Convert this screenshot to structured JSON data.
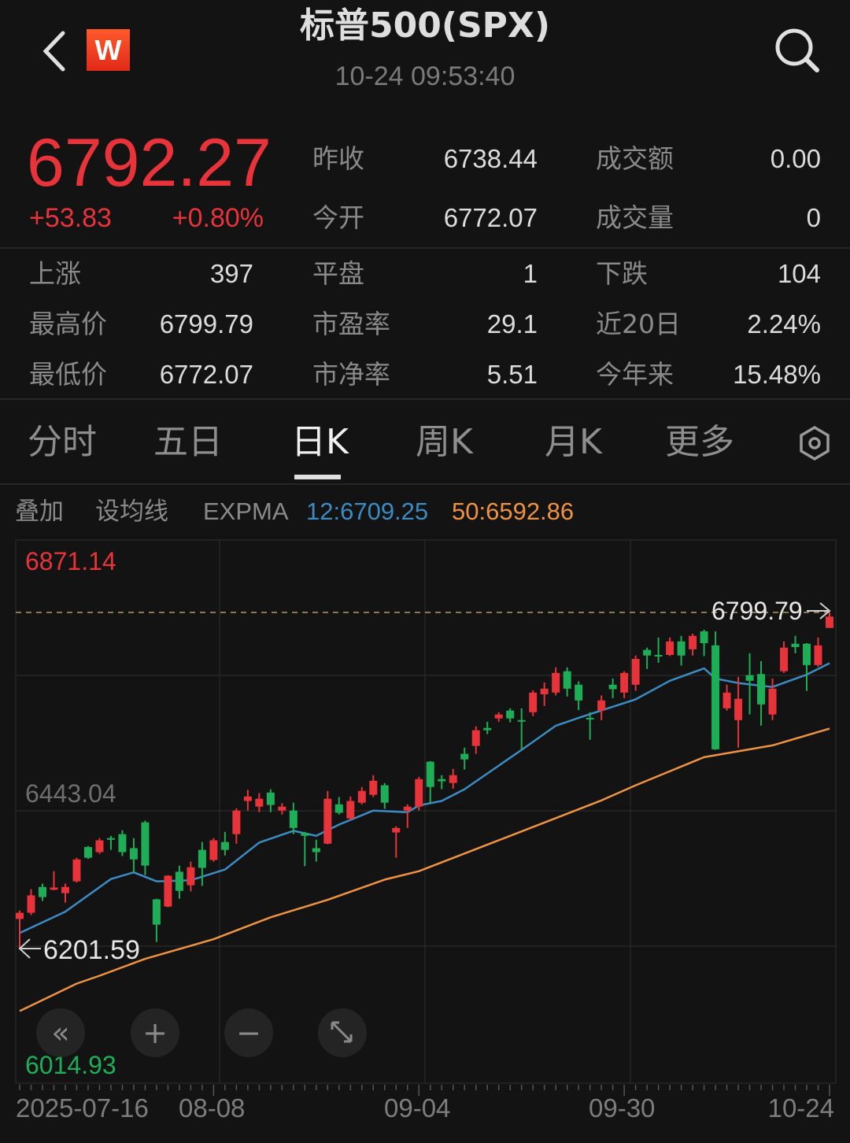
{
  "header": {
    "title": "标普500(SPX)",
    "timestamp": "10-24 09:53:40",
    "logo_letter": "W",
    "back_icon": "chevron-left-icon",
    "search_icon": "search-icon"
  },
  "quote": {
    "price": "6792.27",
    "change": "+53.83",
    "change_pct": "+0.80%",
    "top_stats": [
      {
        "label": "昨收",
        "value": "6738.44"
      },
      {
        "label": "成交额",
        "value": "0.00"
      },
      {
        "label": "今开",
        "value": "6772.07"
      },
      {
        "label": "成交量",
        "value": "0"
      }
    ],
    "grid_stats": [
      {
        "label": "上涨",
        "value": "397"
      },
      {
        "label": "平盘",
        "value": "1"
      },
      {
        "label": "下跌",
        "value": "104"
      },
      {
        "label": "最高价",
        "value": "6799.79"
      },
      {
        "label": "市盈率",
        "value": "29.1"
      },
      {
        "label": "近20日",
        "value": "2.24%"
      },
      {
        "label": "最低价",
        "value": "6772.07"
      },
      {
        "label": "市净率",
        "value": "5.51"
      },
      {
        "label": "今年来",
        "value": "15.48%"
      }
    ]
  },
  "tabs": [
    {
      "label": "分时"
    },
    {
      "label": "五日"
    },
    {
      "label": "日K",
      "active": true
    },
    {
      "label": "周K"
    },
    {
      "label": "月K"
    },
    {
      "label": "更多"
    }
  ],
  "indicator_bar": {
    "overlay": "叠加",
    "set_ma": "设均线",
    "name": "EXPMA",
    "ema12_label": "12:6709.25",
    "ema50_label": "50:6592.86"
  },
  "colors": {
    "up": "#e8333a",
    "down": "#1fae58",
    "ema12": "#3b8cc4",
    "ema50": "#ef9340",
    "background": "#131313"
  },
  "controls": [
    {
      "name": "scroll-left",
      "icon": "double-chevron-left-icon"
    },
    {
      "name": "zoom-in",
      "icon": "plus-icon"
    },
    {
      "name": "zoom-out",
      "icon": "minus-icon"
    },
    {
      "name": "fullscreen",
      "icon": "expand-arrows-icon"
    }
  ],
  "chart_data": {
    "type": "candlestick",
    "ylim": [
      6014.93,
      6871.14
    ],
    "y_labels": {
      "top": "6871.14",
      "middle": "6443.04",
      "bottom": "6014.93"
    },
    "max_marker": "6799.79",
    "min_marker": "6201.59",
    "x_tick_labels": [
      "2025-07-16",
      "08-08",
      "09-04",
      "09-30",
      "10-24"
    ],
    "grid": true,
    "candle_fields": [
      "date",
      "open",
      "high",
      "low",
      "close"
    ],
    "candles": [
      [
        "07-16",
        6254,
        6269,
        6201.59,
        6265
      ],
      [
        "07-17",
        6265,
        6307,
        6261,
        6296
      ],
      [
        "07-18",
        6311,
        6317,
        6286,
        6293
      ],
      [
        "07-21",
        6306,
        6339,
        6305,
        6310
      ],
      [
        "07-22",
        6300,
        6317,
        6283,
        6311
      ],
      [
        "07-23",
        6321,
        6363,
        6319,
        6360
      ],
      [
        "07-24",
        6382,
        6384,
        6361,
        6363
      ],
      [
        "07-25",
        6373,
        6398,
        6370,
        6394
      ],
      [
        "07-28",
        6398,
        6402,
        6377,
        6395
      ],
      [
        "07-29",
        6405,
        6412,
        6366,
        6373
      ],
      [
        "07-30",
        6380,
        6398,
        6338,
        6360
      ],
      [
        "07-31",
        6426,
        6429,
        6332,
        6349
      ],
      [
        "08-01",
        6289,
        6290,
        6213,
        6244
      ],
      [
        "08-04",
        6276,
        6332,
        6275,
        6331
      ],
      [
        "08-05",
        6338,
        6349,
        6290,
        6304
      ],
      [
        "08-06",
        6314,
        6356,
        6303,
        6346
      ],
      [
        "08-07",
        6377,
        6391,
        6313,
        6345
      ],
      [
        "08-08",
        6359,
        6398,
        6356,
        6394
      ],
      [
        "08-11",
        6391,
        6409,
        6367,
        6377
      ],
      [
        "08-12",
        6405,
        6451,
        6388,
        6447
      ],
      [
        "08-13",
        6464,
        6484,
        6447,
        6472
      ],
      [
        "08-14",
        6454,
        6478,
        6444,
        6468
      ],
      [
        "08-15",
        6479,
        6485,
        6444,
        6457
      ],
      [
        "08-18",
        6447,
        6460,
        6440,
        6454
      ],
      [
        "08-19",
        6447,
        6461,
        6405,
        6416
      ],
      [
        "08-20",
        6407,
        6409,
        6348,
        6402
      ],
      [
        "08-21",
        6380,
        6395,
        6356,
        6373
      ],
      [
        "08-22",
        6388,
        6482,
        6387,
        6468
      ],
      [
        "08-25",
        6458,
        6471,
        6440,
        6443
      ],
      [
        "08-26",
        6433,
        6472,
        6430,
        6464
      ],
      [
        "08-27",
        6461,
        6489,
        6458,
        6482
      ],
      [
        "08-28",
        6475,
        6510,
        6471,
        6500
      ],
      [
        "08-29",
        6492,
        6496,
        6450,
        6461
      ],
      [
        "09-02",
        6408,
        6419,
        6363,
        6416
      ],
      [
        "09-03",
        6447,
        6458,
        6416,
        6454
      ],
      [
        "09-04",
        6454,
        6507,
        6447,
        6503
      ],
      [
        "09-05",
        6534,
        6535,
        6461,
        6489
      ],
      [
        "09-08",
        6503,
        6510,
        6485,
        6499
      ],
      [
        "09-09",
        6496,
        6521,
        6486,
        6510
      ],
      [
        "09-10",
        6548,
        6559,
        6520,
        6538
      ],
      [
        "09-11",
        6562,
        6597,
        6548,
        6590
      ],
      [
        "09-12",
        6594,
        6605,
        6583,
        6590
      ],
      [
        "09-15",
        6611,
        6622,
        6605,
        6618
      ],
      [
        "09-16",
        6625,
        6629,
        6604,
        6611
      ],
      [
        "09-17",
        6608,
        6629,
        6555,
        6607
      ],
      [
        "09-18",
        6622,
        6661,
        6615,
        6657
      ],
      [
        "09-19",
        6654,
        6675,
        6633,
        6664
      ],
      [
        "09-22",
        6657,
        6702,
        6652,
        6692
      ],
      [
        "09-23",
        6695,
        6702,
        6650,
        6664
      ],
      [
        "09-24",
        6671,
        6677,
        6626,
        6643
      ],
      [
        "09-25",
        6612,
        6622,
        6573,
        6610
      ],
      [
        "09-26",
        6625,
        6652,
        6608,
        6643
      ],
      [
        "09-29",
        6671,
        6682,
        6647,
        6663
      ],
      [
        "09-30",
        6657,
        6695,
        6647,
        6692
      ],
      [
        "10-01",
        6671,
        6723,
        6660,
        6717
      ],
      [
        "10-02",
        6733,
        6737,
        6699,
        6723
      ],
      [
        "10-03",
        6724,
        6755,
        6710,
        6723
      ],
      [
        "10-06",
        6724,
        6755,
        6722,
        6748
      ],
      [
        "10-07",
        6748,
        6758,
        6705,
        6723
      ],
      [
        "10-08",
        6734,
        6762,
        6723,
        6758
      ],
      [
        "10-09",
        6766,
        6769,
        6722,
        6745
      ],
      [
        "10-10",
        6741,
        6766,
        6555,
        6556
      ],
      [
        "10-13",
        6629,
        6671,
        6625,
        6657
      ],
      [
        "10-14",
        6608,
        6685,
        6559,
        6646
      ],
      [
        "10-15",
        6688,
        6727,
        6618,
        6678
      ],
      [
        "10-16",
        6690,
        6713,
        6598,
        6636
      ],
      [
        "10-17",
        6618,
        6682,
        6608,
        6664
      ],
      [
        "10-20",
        6695,
        6748,
        6692,
        6737
      ],
      [
        "10-21",
        6744,
        6758,
        6727,
        6738
      ],
      [
        "10-22",
        6744,
        6745,
        6660,
        6706
      ],
      [
        "10-23",
        6706,
        6755,
        6703,
        6741
      ],
      [
        "10-24",
        6772.07,
        6799.79,
        6772.07,
        6792.27
      ]
    ],
    "series": [
      {
        "name": "EXPMA12",
        "points": [
          [
            "07-16",
            6229
          ],
          [
            "07-22",
            6267
          ],
          [
            "07-28",
            6325
          ],
          [
            "07-30",
            6337
          ],
          [
            "08-01",
            6321
          ],
          [
            "08-06",
            6323
          ],
          [
            "08-11",
            6342
          ],
          [
            "08-14",
            6390
          ],
          [
            "08-19",
            6411
          ],
          [
            "08-21",
            6402
          ],
          [
            "08-25",
            6422
          ],
          [
            "08-28",
            6447
          ],
          [
            "09-03",
            6444
          ],
          [
            "09-04",
            6456
          ],
          [
            "09-08",
            6464
          ],
          [
            "09-10",
            6485
          ],
          [
            "09-15",
            6527
          ],
          [
            "09-17",
            6555
          ],
          [
            "09-22",
            6598
          ],
          [
            "09-24",
            6612
          ],
          [
            "10-01",
            6645
          ],
          [
            "10-06",
            6678
          ],
          [
            "10-09",
            6700
          ],
          [
            "10-10",
            6682
          ],
          [
            "10-14",
            6674
          ],
          [
            "10-17",
            6667
          ],
          [
            "10-22",
            6689
          ],
          [
            "10-24",
            6709.25
          ]
        ]
      },
      {
        "name": "EXPMA50",
        "points": [
          [
            "07-16",
            6090
          ],
          [
            "07-23",
            6139
          ],
          [
            "07-25",
            6153
          ],
          [
            "07-31",
            6183
          ],
          [
            "08-08",
            6218
          ],
          [
            "08-15",
            6257
          ],
          [
            "08-22",
            6288
          ],
          [
            "08-29",
            6324
          ],
          [
            "09-04",
            6339
          ],
          [
            "09-16",
            6402
          ],
          [
            "09-26",
            6465
          ],
          [
            "10-01",
            6492
          ],
          [
            "10-09",
            6542
          ],
          [
            "10-17",
            6563
          ],
          [
            "10-24",
            6592.86
          ]
        ]
      }
    ]
  }
}
